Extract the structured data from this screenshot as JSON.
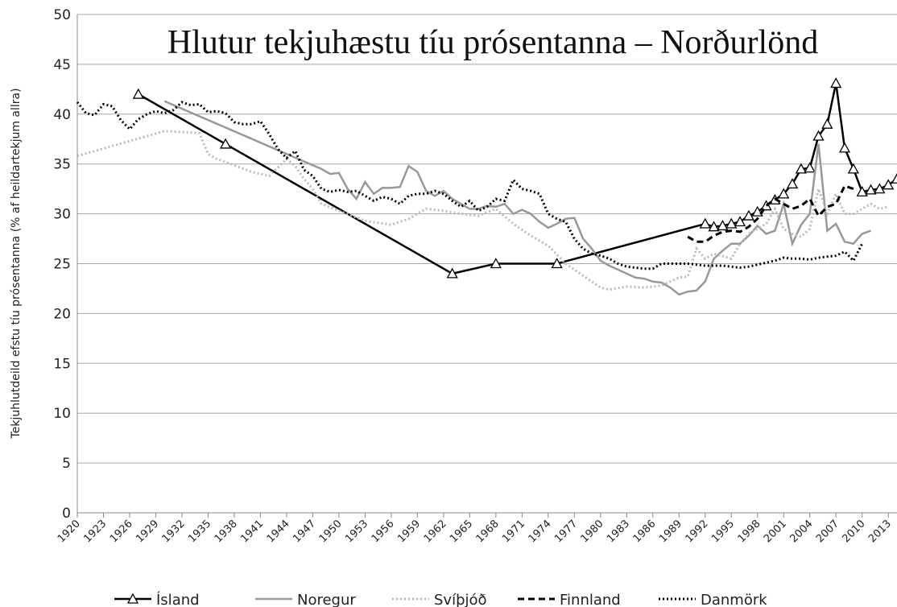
{
  "chart_data": {
    "type": "line",
    "title": "Hlutur tekjuhæstu tíu prósentanna – Norðurlönd",
    "ylabel": "Tekjuhlutdeild efstu tíu prósentanna (% af heildartekjum allra)",
    "xlim": [
      1920,
      2014
    ],
    "ylim": [
      0,
      50
    ],
    "xticks": [
      1920,
      1923,
      1926,
      1929,
      1932,
      1935,
      1938,
      1941,
      1944,
      1947,
      1950,
      1953,
      1956,
      1959,
      1962,
      1965,
      1968,
      1971,
      1974,
      1977,
      1980,
      1983,
      1986,
      1989,
      1992,
      1995,
      1998,
      2001,
      2004,
      2007,
      2010,
      2013
    ],
    "yticks": [
      0,
      5,
      10,
      15,
      20,
      25,
      30,
      35,
      40,
      45,
      50
    ],
    "grid": true,
    "series": [
      {
        "name": "Ísland",
        "color": "#000000",
        "dash": "solid",
        "marker": "triangle",
        "x": [
          1927,
          1937,
          1963,
          1968,
          1975,
          1992,
          1993,
          1994,
          1995,
          1996,
          1997,
          1998,
          1999,
          2000,
          2001,
          2002,
          2003,
          2004,
          2005,
          2006,
          2007,
          2008,
          2009,
          2010,
          2011,
          2012,
          2013,
          2014
        ],
        "values": [
          42,
          37,
          24,
          25,
          25,
          29,
          28.7,
          28.8,
          29,
          29.2,
          29.8,
          30.2,
          30.8,
          31.4,
          32,
          33,
          34.5,
          34.6,
          37.8,
          39,
          43.1,
          36.6,
          34.5,
          32.2,
          32.4,
          32.5,
          32.9,
          33.5
        ]
      },
      {
        "name": "Noregur",
        "color": "#999999",
        "dash": "solid",
        "x": [
          1930,
          1948,
          1949,
          1950,
          1951,
          1952,
          1953,
          1954,
          1955,
          1956,
          1957,
          1958,
          1959,
          1960,
          1961,
          1962,
          1963,
          1964,
          1965,
          1966,
          1967,
          1968,
          1969,
          1970,
          1971,
          1972,
          1973,
          1974,
          1975,
          1976,
          1977,
          1978,
          1979,
          1980,
          1981,
          1982,
          1983,
          1984,
          1985,
          1986,
          1987,
          1988,
          1989,
          1990,
          1991,
          1992,
          1993,
          1994,
          1995,
          1996,
          1997,
          1998,
          1999,
          2000,
          2001,
          2002,
          2003,
          2004,
          2005,
          2006,
          2007,
          2008,
          2009,
          2010,
          2011
        ],
        "values": [
          41.3,
          34.5,
          34,
          34.1,
          32.5,
          31.5,
          33.2,
          32,
          32.6,
          32.6,
          32.7,
          34.8,
          34.2,
          32.3,
          31.8,
          32.3,
          31.5,
          31,
          30.5,
          30.5,
          30.8,
          30.7,
          31,
          30,
          30.4,
          30,
          29.2,
          28.6,
          29,
          29.5,
          29.6,
          27.5,
          26.5,
          25.3,
          24.8,
          24.4,
          24,
          23.6,
          23.5,
          23.2,
          23.1,
          22.6,
          21.9,
          22.2,
          22.3,
          23.2,
          25.5,
          26.3,
          27,
          27,
          27.8,
          28.8,
          28,
          28.3,
          31,
          27,
          28.9,
          30,
          37,
          28.3,
          29,
          27.2,
          27,
          28,
          28.3
        ]
      },
      {
        "name": "Svíþjóð",
        "color": "#bbbbbb",
        "dash": "dotted",
        "x": [
          1920,
          1930,
          1934,
          1935,
          1936,
          1937,
          1940,
          1942,
          1944,
          1945,
          1946,
          1947,
          1948,
          1950,
          1953,
          1956,
          1958,
          1960,
          1962,
          1964,
          1966,
          1968,
          1970,
          1972,
          1974,
          1976,
          1978,
          1980,
          1981,
          1983,
          1985,
          1987,
          1989,
          1990,
          1991,
          1992,
          1993,
          1995,
          1996,
          1997,
          1998,
          1999,
          2000,
          2001,
          2002,
          2003,
          2004,
          2005,
          2006,
          2007,
          2008,
          2009,
          2010,
          2011,
          2012,
          2013
        ],
        "values": [
          35.8,
          38.3,
          38.1,
          36,
          35.5,
          35.2,
          34.2,
          33.8,
          35.5,
          34.8,
          33.5,
          32.5,
          31,
          30.3,
          29.3,
          28.9,
          29.5,
          30.5,
          30.3,
          30,
          29.8,
          30.5,
          29,
          27.8,
          26.8,
          25,
          23.8,
          22.6,
          22.4,
          22.7,
          22.6,
          22.8,
          23.6,
          23.7,
          26.5,
          25.5,
          26,
          25.5,
          27,
          28,
          28.5,
          29,
          30.5,
          28.5,
          28,
          27.7,
          28.5,
          32.5,
          30,
          32,
          30,
          30,
          30.5,
          31,
          30.5,
          30.7
        ]
      },
      {
        "name": "Finnland",
        "color": "#000000",
        "dash": "dashed",
        "x": [
          1990,
          1991,
          1992,
          1993,
          1994,
          1995,
          1996,
          1997,
          1998,
          1999,
          2000,
          2001,
          2002,
          2003,
          2004,
          2005,
          2006,
          2007,
          2008,
          2009
        ],
        "values": [
          27.7,
          27.2,
          27.2,
          27.8,
          28.2,
          28.3,
          28.2,
          28.7,
          29.5,
          30.8,
          31.5,
          31,
          30.5,
          30.8,
          31.5,
          29.8,
          30.7,
          31,
          32.8,
          32.5
        ]
      },
      {
        "name": "Danmörk",
        "color": "#000000",
        "dash": "dotted",
        "x": [
          1920,
          1921,
          1922,
          1923,
          1924,
          1925,
          1926,
          1927,
          1928,
          1929,
          1930,
          1931,
          1932,
          1933,
          1934,
          1935,
          1936,
          1937,
          1938,
          1939,
          1940,
          1941,
          1942,
          1943,
          1944,
          1945,
          1946,
          1947,
          1948,
          1949,
          1950,
          1951,
          1952,
          1953,
          1954,
          1955,
          1956,
          1957,
          1958,
          1959,
          1960,
          1961,
          1962,
          1963,
          1964,
          1965,
          1966,
          1967,
          1968,
          1969,
          1970,
          1971,
          1972,
          1973,
          1974,
          1975,
          1976,
          1977,
          1978,
          1979,
          1980,
          1981,
          1982,
          1983,
          1984,
          1985,
          1986,
          1987,
          1988,
          1989,
          1990,
          1991,
          1992,
          1993,
          1994,
          1995,
          1996,
          1997,
          1998,
          1999,
          2000,
          2001,
          2002,
          2003,
          2004,
          2005,
          2006,
          2007,
          2008,
          2009,
          2010
        ],
        "values": [
          41.2,
          40.1,
          39.9,
          41,
          40.8,
          39.4,
          38.5,
          39.5,
          40,
          40.3,
          40.1,
          40.4,
          41.2,
          40.9,
          41,
          40.2,
          40.3,
          40.1,
          39.2,
          39,
          39,
          39.3,
          38,
          36.5,
          35.6,
          36.3,
          34.4,
          33.8,
          32.5,
          32.2,
          32.4,
          32.2,
          32.3,
          31.8,
          31.3,
          31.7,
          31.5,
          31,
          31.8,
          32,
          32,
          32.3,
          32,
          31.3,
          30.7,
          31.3,
          30.3,
          30.7,
          31.5,
          31.3,
          33.4,
          32.5,
          32.3,
          32,
          30,
          29.5,
          29.2,
          27.5,
          26.5,
          26,
          25.8,
          25.5,
          25,
          24.7,
          24.6,
          24.5,
          24.5,
          25,
          25,
          25,
          25,
          24.9,
          24.8,
          24.8,
          24.8,
          24.7,
          24.6,
          24.7,
          24.9,
          25.1,
          25.3,
          25.6,
          25.5,
          25.5,
          25.4,
          25.6,
          25.7,
          25.8,
          26.2,
          25.3,
          27
        ]
      }
    ]
  }
}
